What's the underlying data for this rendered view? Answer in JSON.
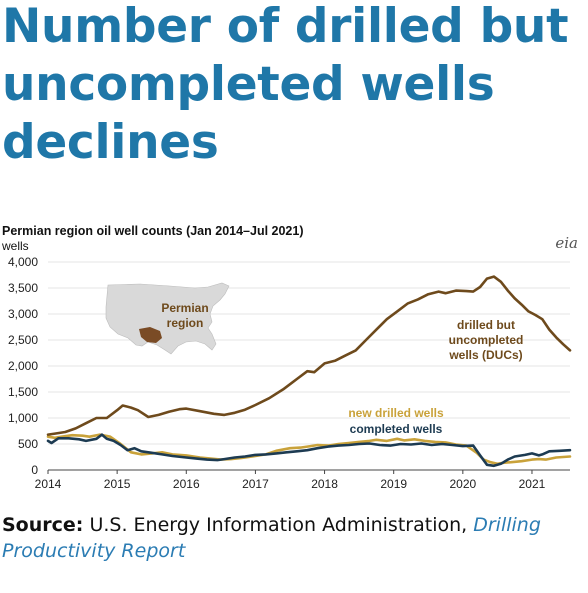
{
  "headline": "Number of drilled but uncompleted wells declines",
  "logo": "eia",
  "source": {
    "label": "Source:",
    "text": "U.S. Energy Information Administration,",
    "link": "Drilling Productivity Report"
  },
  "colors": {
    "headline": "#1f77a8",
    "ducs": "#6e4a1c",
    "new_drilled": "#c9a23a",
    "completed": "#1d3b52",
    "map_fill": "#d9d9d9",
    "permian": "#7a4b25"
  },
  "map": {
    "icon": "us-map-icon",
    "label": "Permian region"
  },
  "chart_data": {
    "type": "line",
    "title": "Permian region oil well counts (Jan 2014–Jul 2021)",
    "ylabel": "wells",
    "xlim": [
      2014.0,
      2021.55
    ],
    "ylim": [
      0,
      4000
    ],
    "xticks": [
      "2014",
      "2015",
      "2016",
      "2017",
      "2018",
      "2019",
      "2020",
      "2021"
    ],
    "yticks": [
      "0",
      "500",
      "1,000",
      "1,500",
      "2,000",
      "2,500",
      "3,000",
      "3,500",
      "4,000"
    ],
    "grid": "horizontal",
    "series": [
      {
        "name": "drilled but uncompleted wells (DUCs)",
        "label": "drilled but\nuncompleted\nwells (DUCs)",
        "color": "#6e4a1c",
        "x": [
          2014.0,
          2014.1,
          2014.25,
          2014.4,
          2014.55,
          2014.7,
          2014.85,
          2015.0,
          2015.08,
          2015.2,
          2015.3,
          2015.45,
          2015.6,
          2015.75,
          2015.9,
          2016.0,
          2016.2,
          2016.4,
          2016.55,
          2016.7,
          2016.85,
          2017.0,
          2017.2,
          2017.4,
          2017.6,
          2017.75,
          2017.85,
          2018.0,
          2018.15,
          2018.3,
          2018.45,
          2018.6,
          2018.75,
          2018.9,
          2019.05,
          2019.2,
          2019.35,
          2019.5,
          2019.65,
          2019.75,
          2019.9,
          2020.05,
          2020.15,
          2020.25,
          2020.35,
          2020.45,
          2020.55,
          2020.65,
          2020.75,
          2020.85,
          2020.95,
          2021.05,
          2021.15,
          2021.25,
          2021.35,
          2021.45,
          2021.55
        ],
        "y": [
          680,
          700,
          730,
          800,
          900,
          1000,
          1000,
          1150,
          1240,
          1200,
          1150,
          1020,
          1060,
          1120,
          1170,
          1180,
          1130,
          1080,
          1060,
          1100,
          1160,
          1250,
          1380,
          1550,
          1750,
          1900,
          1880,
          2050,
          2100,
          2200,
          2300,
          2500,
          2700,
          2900,
          3050,
          3200,
          3280,
          3380,
          3430,
          3400,
          3450,
          3440,
          3430,
          3520,
          3680,
          3720,
          3620,
          3450,
          3300,
          3180,
          3050,
          2980,
          2900,
          2700,
          2550,
          2420,
          2300
        ]
      },
      {
        "name": "new drilled wells",
        "color": "#c9a23a",
        "x": [
          2014.0,
          2014.1,
          2014.2,
          2014.35,
          2014.5,
          2014.6,
          2014.75,
          2014.9,
          2015.05,
          2015.2,
          2015.35,
          2015.5,
          2015.65,
          2015.8,
          2016.0,
          2016.2,
          2016.35,
          2016.5,
          2016.65,
          2016.8,
          2017.0,
          2017.15,
          2017.3,
          2017.5,
          2017.65,
          2017.8,
          2017.9,
          2018.05,
          2018.2,
          2018.35,
          2018.5,
          2018.65,
          2018.75,
          2018.9,
          2019.05,
          2019.15,
          2019.3,
          2019.45,
          2019.6,
          2019.75,
          2019.9,
          2020.05,
          2020.2,
          2020.3,
          2020.4,
          2020.5,
          2020.6,
          2020.7,
          2020.85,
          2021.0,
          2021.1,
          2021.2,
          2021.35,
          2021.55
        ],
        "y": [
          640,
          620,
          640,
          670,
          660,
          640,
          680,
          640,
          500,
          340,
          300,
          320,
          340,
          300,
          280,
          240,
          220,
          200,
          210,
          230,
          270,
          300,
          370,
          420,
          430,
          460,
          480,
          470,
          500,
          520,
          540,
          560,
          580,
          560,
          600,
          570,
          590,
          560,
          540,
          530,
          490,
          470,
          330,
          200,
          150,
          120,
          140,
          150,
          170,
          200,
          210,
          200,
          240,
          260
        ]
      },
      {
        "name": "completed wells",
        "color": "#1d3b52",
        "x": [
          2014.0,
          2014.05,
          2014.15,
          2014.3,
          2014.45,
          2014.55,
          2014.7,
          2014.78,
          2014.85,
          2014.95,
          2015.05,
          2015.15,
          2015.25,
          2015.35,
          2015.5,
          2015.65,
          2015.8,
          2016.0,
          2016.15,
          2016.3,
          2016.45,
          2016.55,
          2016.7,
          2016.85,
          2017.0,
          2017.15,
          2017.3,
          2017.45,
          2017.6,
          2017.75,
          2017.9,
          2018.05,
          2018.2,
          2018.35,
          2018.5,
          2018.65,
          2018.8,
          2018.95,
          2019.1,
          2019.25,
          2019.4,
          2019.55,
          2019.7,
          2019.85,
          2020.0,
          2020.15,
          2020.25,
          2020.35,
          2020.45,
          2020.55,
          2020.65,
          2020.75,
          2020.9,
          2021.0,
          2021.1,
          2021.15,
          2021.25,
          2021.4,
          2021.55
        ],
        "y": [
          560,
          520,
          610,
          610,
          590,
          560,
          600,
          680,
          600,
          560,
          480,
          380,
          420,
          360,
          330,
          300,
          270,
          240,
          220,
          200,
          190,
          210,
          240,
          260,
          290,
          300,
          320,
          340,
          360,
          380,
          420,
          450,
          470,
          480,
          500,
          510,
          480,
          470,
          500,
          490,
          510,
          480,
          500,
          480,
          460,
          470,
          280,
          100,
          80,
          120,
          200,
          260,
          290,
          320,
          280,
          300,
          360,
          370,
          380
        ]
      }
    ],
    "annotations": [
      {
        "text": "new drilled wells",
        "color": "#c9a23a"
      },
      {
        "text": "completed wells",
        "color": "#1d3b52"
      }
    ]
  }
}
